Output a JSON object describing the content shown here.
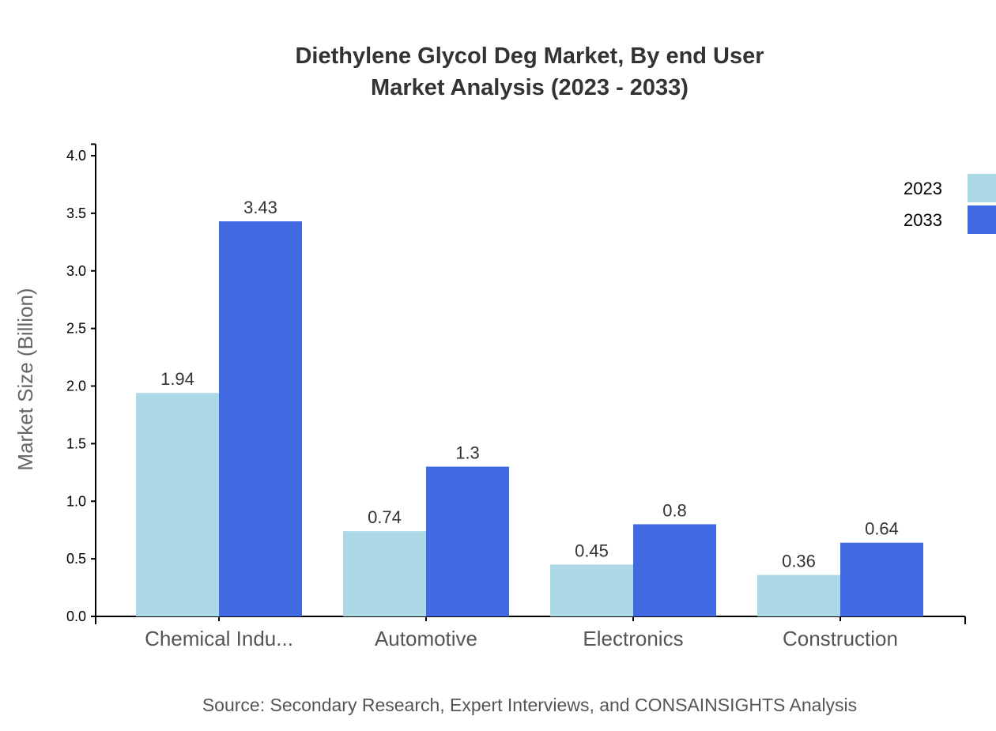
{
  "chart_data": {
    "type": "bar",
    "title": "Diethylene Glycol Deg Market, By end User",
    "subtitle": "Market Analysis (2023 - 2033)",
    "xlabel": "",
    "ylabel": "Market Size (Billion)",
    "ylim": [
      0,
      4.1
    ],
    "yticks": [
      "0.0",
      "0.5",
      "1.0",
      "1.5",
      "2.0",
      "2.5",
      "3.0",
      "3.5",
      "4.0"
    ],
    "categories": [
      "Chemical Indu...",
      "Automotive",
      "Electronics",
      "Construction"
    ],
    "series": [
      {
        "name": "2023",
        "color": "#add8e6",
        "values": [
          1.94,
          0.74,
          0.45,
          0.36
        ],
        "labels": [
          "1.94",
          "0.74",
          "0.45",
          "0.36"
        ]
      },
      {
        "name": "2033",
        "color": "#4169e1",
        "values": [
          3.43,
          1.3,
          0.8,
          0.64
        ],
        "labels": [
          "3.43",
          "1.3",
          "0.8",
          "0.64"
        ]
      }
    ],
    "legend": "top-right",
    "grid": false,
    "source": "Source: Secondary Research, Expert Interviews, and CONSAINSIGHTS Analysis"
  }
}
